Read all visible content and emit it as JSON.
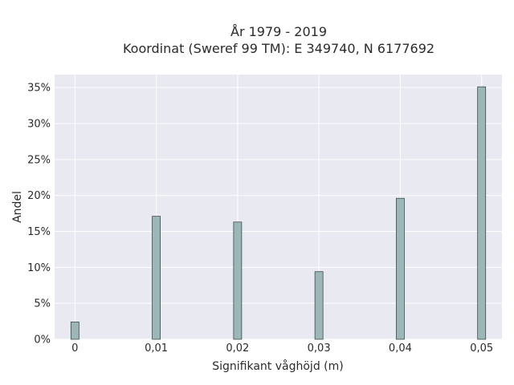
{
  "chart_data": {
    "type": "bar",
    "title": "År 1979 - 2019",
    "subtitle": "Koordinat (Sweref 99 TM): E 349740, N 6177692",
    "xlabel": "Signifikant våghöjd (m)",
    "ylabel": "Andel",
    "x_tick_labels": [
      "0",
      "0,01",
      "0,02",
      "0,03",
      "0,04",
      "0,05"
    ],
    "y_tick_labels": [
      "0%",
      "5%",
      "10%",
      "15%",
      "20%",
      "25%",
      "30%",
      "35%"
    ],
    "x": [
      0,
      0.01,
      0.02,
      0.03,
      0.04,
      0.05
    ],
    "values": [
      2.4,
      17.1,
      16.3,
      9.4,
      19.6,
      35.1
    ],
    "value_unit": "%",
    "xlim": [
      -0.0025,
      0.0525
    ],
    "ylim": [
      0,
      36.8
    ],
    "y_ticks": [
      0,
      5,
      10,
      15,
      20,
      25,
      30,
      35
    ],
    "grid": true,
    "colors": {
      "plot_background": "#e9e9f1",
      "bar_fill": "#9db7b8",
      "bar_edge": "#3c4a4a",
      "grid": "#ffffff",
      "text": "#2b2b2b"
    }
  }
}
